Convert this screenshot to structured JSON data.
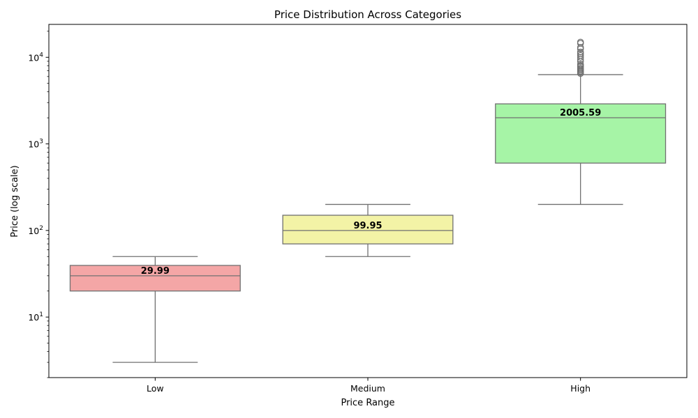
{
  "chart_data": {
    "type": "boxplot",
    "title": "Price Distribution Across Categories",
    "xlabel": "Price Range",
    "ylabel": "Price (log scale)",
    "yscale": "log",
    "ylim": [
      2,
      24000
    ],
    "y_ticks": [
      {
        "value": 10,
        "label_base": "10",
        "label_exp": "1"
      },
      {
        "value": 100,
        "label_base": "10",
        "label_exp": "2"
      },
      {
        "value": 1000,
        "label_base": "10",
        "label_exp": "3"
      },
      {
        "value": 10000,
        "label_base": "10",
        "label_exp": "4"
      }
    ],
    "categories": [
      "Low",
      "Medium",
      "High"
    ],
    "boxes": [
      {
        "category": "Low",
        "whisker_low": 3,
        "q1": 20,
        "median": 29.99,
        "q3": 39.5,
        "whisker_high": 50,
        "median_label": "29.99",
        "color": "#f4a6a6",
        "outliers": []
      },
      {
        "category": "Medium",
        "whisker_low": 50,
        "q1": 70,
        "median": 99.95,
        "q3": 150,
        "whisker_high": 200,
        "median_label": "99.95",
        "color": "#f3f3a6",
        "outliers": []
      },
      {
        "category": "High",
        "whisker_low": 200,
        "q1": 600,
        "median": 2005.59,
        "q3": 2900,
        "whisker_high": 6300,
        "median_label": "2005.59",
        "color": "#a6f4a6",
        "outliers": [
          6500,
          6700,
          6900,
          7100,
          7300,
          7500,
          7800,
          8000,
          8300,
          9000,
          9500,
          10000,
          10500,
          11000,
          11500,
          12500,
          13000,
          14500,
          15000
        ]
      }
    ],
    "line_color": "#707070"
  }
}
